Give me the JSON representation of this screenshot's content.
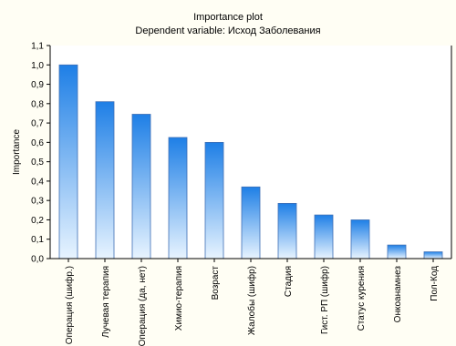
{
  "chart_data": {
    "type": "bar",
    "title": "Importance plot",
    "subtitle": "Dependent variable: Исход Заболевания",
    "xlabel": "",
    "ylabel": "Importance",
    "ylim": [
      0,
      1.1
    ],
    "yticks": [
      "0,0",
      "0,1",
      "0,2",
      "0,3",
      "0,4",
      "0,5",
      "0,6",
      "0,7",
      "0,8",
      "0,9",
      "1,0",
      "1,1"
    ],
    "grid": false,
    "categories": [
      "Операция (шифр.)",
      "Лучевая терапия",
      "Операция (да, нет)",
      "Химио-терапия",
      "Возраст",
      "Жалобы (шифр)",
      "Стадия",
      "Гист. РП (шифр)",
      "Статус курения",
      "Онкоанамнез",
      "Пол-Код"
    ],
    "values": [
      1.0,
      0.81,
      0.745,
      0.625,
      0.6,
      0.37,
      0.285,
      0.225,
      0.2,
      0.07,
      0.035
    ],
    "colors": {
      "bar_top": "#1e7fe6",
      "bar_bottom": "#e8f4ff",
      "bar_stroke": "#3f6fb5",
      "axis": "#000000",
      "plot_background": "#ffffff",
      "outer_background": "#fffef4"
    }
  }
}
